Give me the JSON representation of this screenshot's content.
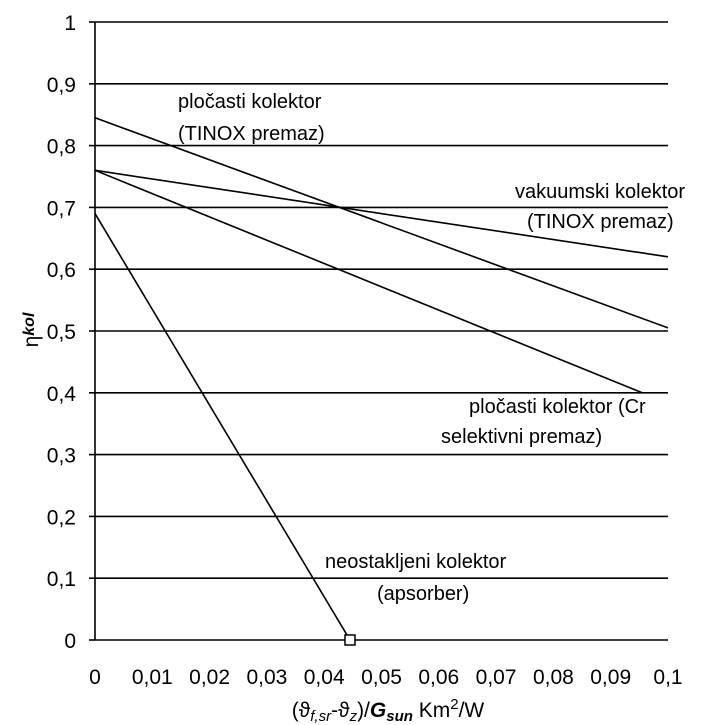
{
  "chart_data": {
    "type": "line",
    "xlim": [
      0,
      0.1
    ],
    "ylim": [
      0,
      1
    ],
    "grid": true,
    "x_ticks": [
      "0",
      "0,01",
      "0,02",
      "0,03",
      "0,04",
      "0,05",
      "0,06",
      "0,07",
      "0,08",
      "0,09",
      "0,1"
    ],
    "y_ticks": [
      "0",
      "0,1",
      "0,2",
      "0,3",
      "0,4",
      "0,5",
      "0,6",
      "0,7",
      "0,8",
      "0,9",
      "1"
    ],
    "xlabel": "(ϑf,sr-ϑz)/Gsun Km²/W",
    "xlabel_parts": {
      "open": "(ϑ",
      "sub1": "f,sr",
      "mid": "-ϑ",
      "sub2": "z",
      "close": ")/",
      "g": "G",
      "sub3": "sun",
      "unit": " Km",
      "sup": "2",
      "tail": "/W"
    },
    "ylabel": "ηkol",
    "ylabel_parts": {
      "eta": "η",
      "sub": "kol"
    },
    "series": [
      {
        "points": [
          [
            0,
            0.845
          ],
          [
            0.1,
            0.505
          ]
        ]
      },
      {
        "points": [
          [
            0,
            0.76
          ],
          [
            0.1,
            0.62
          ]
        ]
      },
      {
        "points": [
          [
            0,
            0.76
          ],
          [
            0.0955,
            0.4
          ]
        ]
      },
      {
        "points": [
          [
            0,
            0.69
          ],
          [
            0.0445,
            0
          ]
        ],
        "marker": "square"
      }
    ],
    "annotations": [
      {
        "lines": [
          "pločasti kolektor",
          "(TINOX premaz)"
        ]
      },
      {
        "lines": [
          "vakuumski kolektor",
          "(TINOX premaz)"
        ]
      },
      {
        "lines": [
          "pločasti kolektor (Cr",
          "selektivni premaz)"
        ]
      },
      {
        "lines": [
          "neostakljeni kolektor",
          "(apsorber)"
        ]
      }
    ]
  }
}
